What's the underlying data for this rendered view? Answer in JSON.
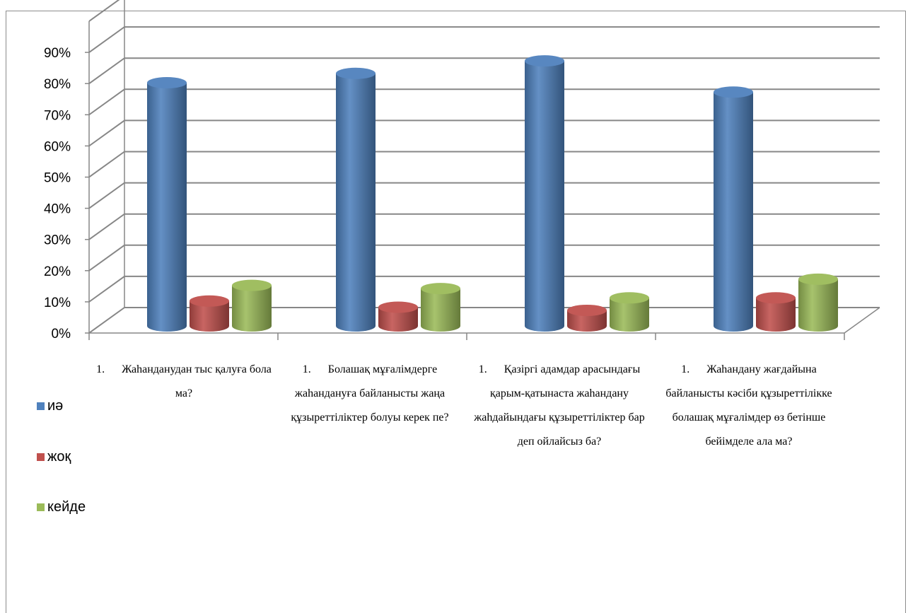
{
  "chart_data": {
    "type": "bar",
    "three_d": true,
    "categories": [
      "1.      Жаһанданудан тыс қалуға бола ма?",
      "1.      Болашақ мұғалімдерге  жаһандануға байланысты жаңа құзыреттіліктер болуы керек пе?",
      "1.      Қазіргі адамдар арасындағы қарым-қатынаста жаһандану жаһдайындағы құзыреттіліктер бар деп ойлайсыз ба?",
      "1.      Жаһандану жағдайына байланысты кәсіби құзыреттілікке болашақ мұғалімдер өз бетінше бейімделе ала ма?"
    ],
    "series": [
      {
        "name": "иә",
        "values": [
          78,
          81,
          85,
          75
        ],
        "color": "#4f81bd"
      },
      {
        "name": "жоқ",
        "values": [
          8,
          6,
          5,
          9
        ],
        "color": "#c0504d"
      },
      {
        "name": "кейде",
        "values": [
          13,
          12,
          9,
          15
        ],
        "color": "#9bbb59"
      }
    ],
    "yticks": [
      "0%",
      "10%",
      "20%",
      "30%",
      "40%",
      "50%",
      "60%",
      "70%",
      "80%",
      "90%"
    ],
    "ylim": [
      0,
      100
    ],
    "grid": true,
    "legend_position": "left"
  }
}
